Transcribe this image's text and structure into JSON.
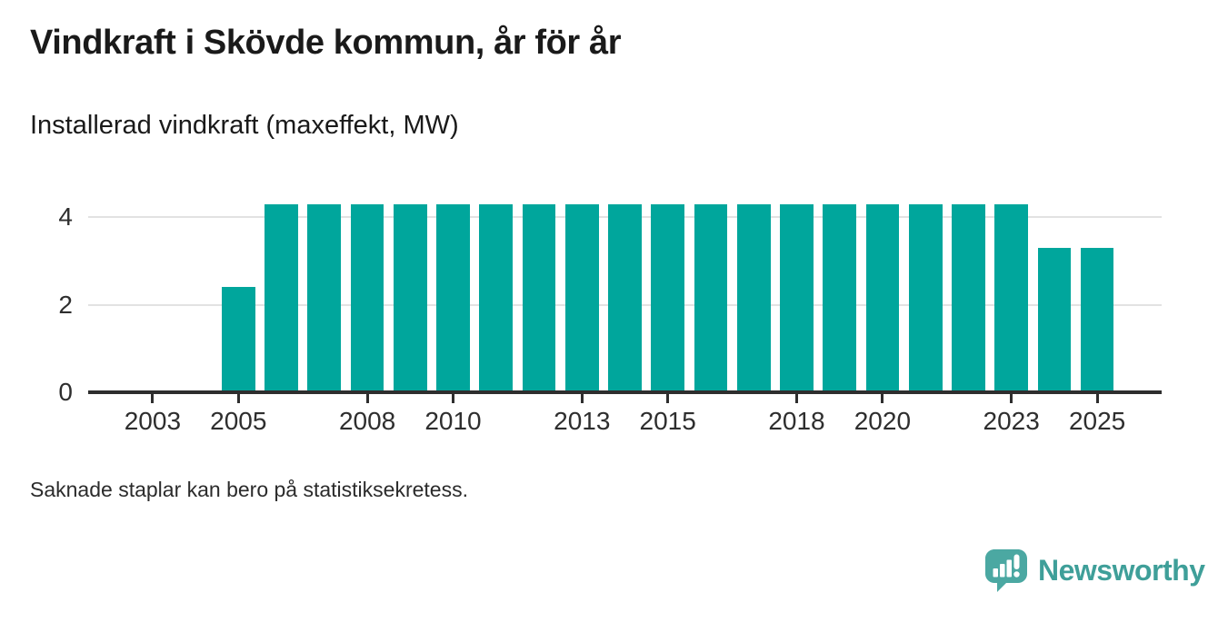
{
  "header": {
    "title": "Vindkraft i Skövde kommun, år för år",
    "subtitle": "Installerad vindkraft (maxeffekt, MW)"
  },
  "footnote": "Saknade staplar kan bero på statistiksekretess.",
  "branding": {
    "logo_text": "Newsworthy",
    "logo_icon": "newsworthy-speech-bubble-bar-chart-icon",
    "icon_color": "#4ba8a2",
    "text_color": "#3f9f99"
  },
  "colors": {
    "bar": "#00a69c",
    "axis_line": "#2e2e2e",
    "gridline": "#e2e2e2",
    "tick_text": "#2e2e2e"
  },
  "chart_data": {
    "type": "bar",
    "title": "Vindkraft i Skövde kommun, år för år",
    "subtitle": "Installerad vindkraft (maxeffekt, MW)",
    "ylabel": "MW",
    "xlabel": "",
    "ylim": [
      0,
      4.5
    ],
    "y_ticks": [
      0,
      2,
      4
    ],
    "x_domain": [
      2002,
      2026
    ],
    "x_tick_labels": [
      2003,
      2005,
      2008,
      2010,
      2013,
      2015,
      2018,
      2020,
      2023,
      2025
    ],
    "grid": "horizontal",
    "legend": "none",
    "missing_years": [
      2002,
      2003,
      2004,
      2026
    ],
    "series": [
      {
        "name": "Installerad vindkraft (maxeffekt, MW)",
        "points": [
          {
            "year": 2005,
            "value": 2.4
          },
          {
            "year": 2006,
            "value": 4.3
          },
          {
            "year": 2007,
            "value": 4.3
          },
          {
            "year": 2008,
            "value": 4.3
          },
          {
            "year": 2009,
            "value": 4.3
          },
          {
            "year": 2010,
            "value": 4.3
          },
          {
            "year": 2011,
            "value": 4.3
          },
          {
            "year": 2012,
            "value": 4.3
          },
          {
            "year": 2013,
            "value": 4.3
          },
          {
            "year": 2014,
            "value": 4.3
          },
          {
            "year": 2015,
            "value": 4.3
          },
          {
            "year": 2016,
            "value": 4.3
          },
          {
            "year": 2017,
            "value": 4.3
          },
          {
            "year": 2018,
            "value": 4.3
          },
          {
            "year": 2019,
            "value": 4.3
          },
          {
            "year": 2020,
            "value": 4.3
          },
          {
            "year": 2021,
            "value": 4.3
          },
          {
            "year": 2022,
            "value": 4.3
          },
          {
            "year": 2023,
            "value": 4.3
          },
          {
            "year": 2024,
            "value": 3.3
          },
          {
            "year": 2025,
            "value": 3.3
          }
        ]
      }
    ]
  }
}
